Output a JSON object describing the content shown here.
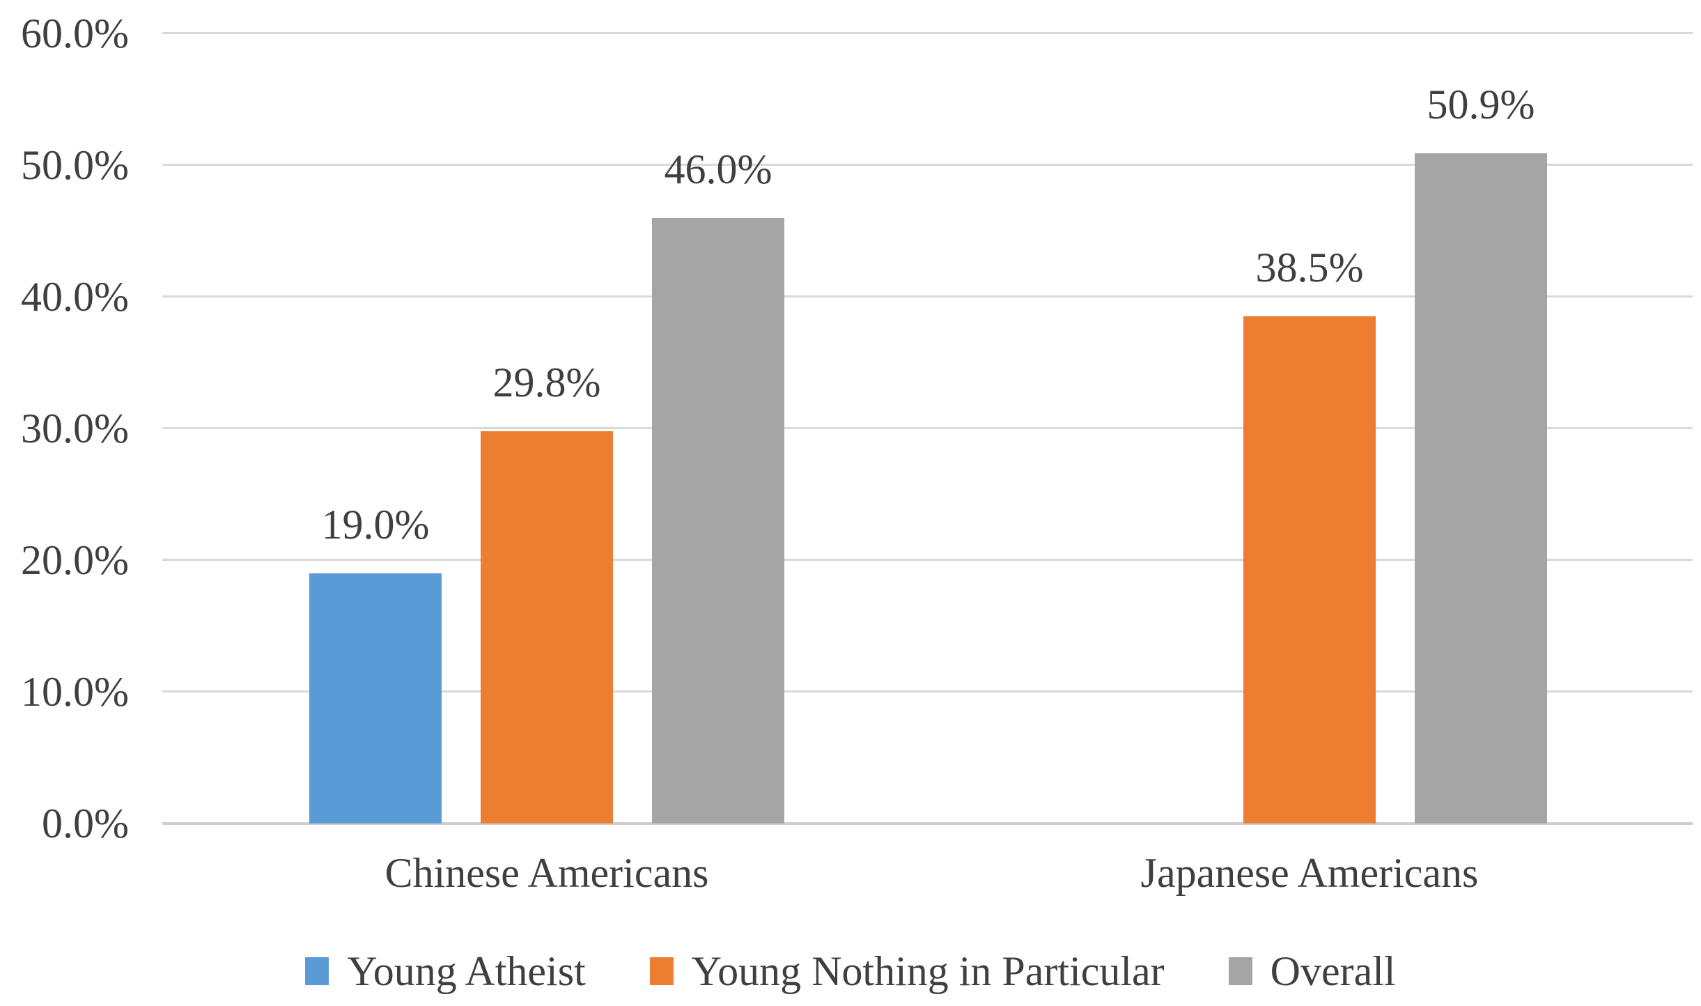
{
  "chart_data": {
    "type": "bar",
    "title": "",
    "categories": [
      "Chinese Americans",
      "Japanese Americans"
    ],
    "series": [
      {
        "name": "Young Atheist",
        "color": "#5B9BD5",
        "values": [
          19.0,
          null
        ],
        "labels": [
          "19.0%",
          null
        ]
      },
      {
        "name": "Young Nothing in Particular",
        "color": "#ED7D31",
        "values": [
          29.8,
          38.5
        ],
        "labels": [
          "29.8%",
          "38.5%"
        ]
      },
      {
        "name": "Overall",
        "color": "#A5A5A5",
        "values": [
          46.0,
          50.9
        ],
        "labels": [
          "46.0%",
          "50.9%"
        ]
      }
    ],
    "y_axis": {
      "min": 0,
      "max": 60,
      "step": 10,
      "tick_labels": [
        "0.0%",
        "10.0%",
        "20.0%",
        "30.0%",
        "40.0%",
        "50.0%",
        "60.0%"
      ]
    },
    "grid": true,
    "legend_position": "bottom",
    "data_labels_shown": true,
    "colors": {
      "grid_line": "#D9D9D9",
      "axis_line": "#CFCFCF",
      "text": "#3F3F3F",
      "background": "#FFFFFF"
    }
  }
}
